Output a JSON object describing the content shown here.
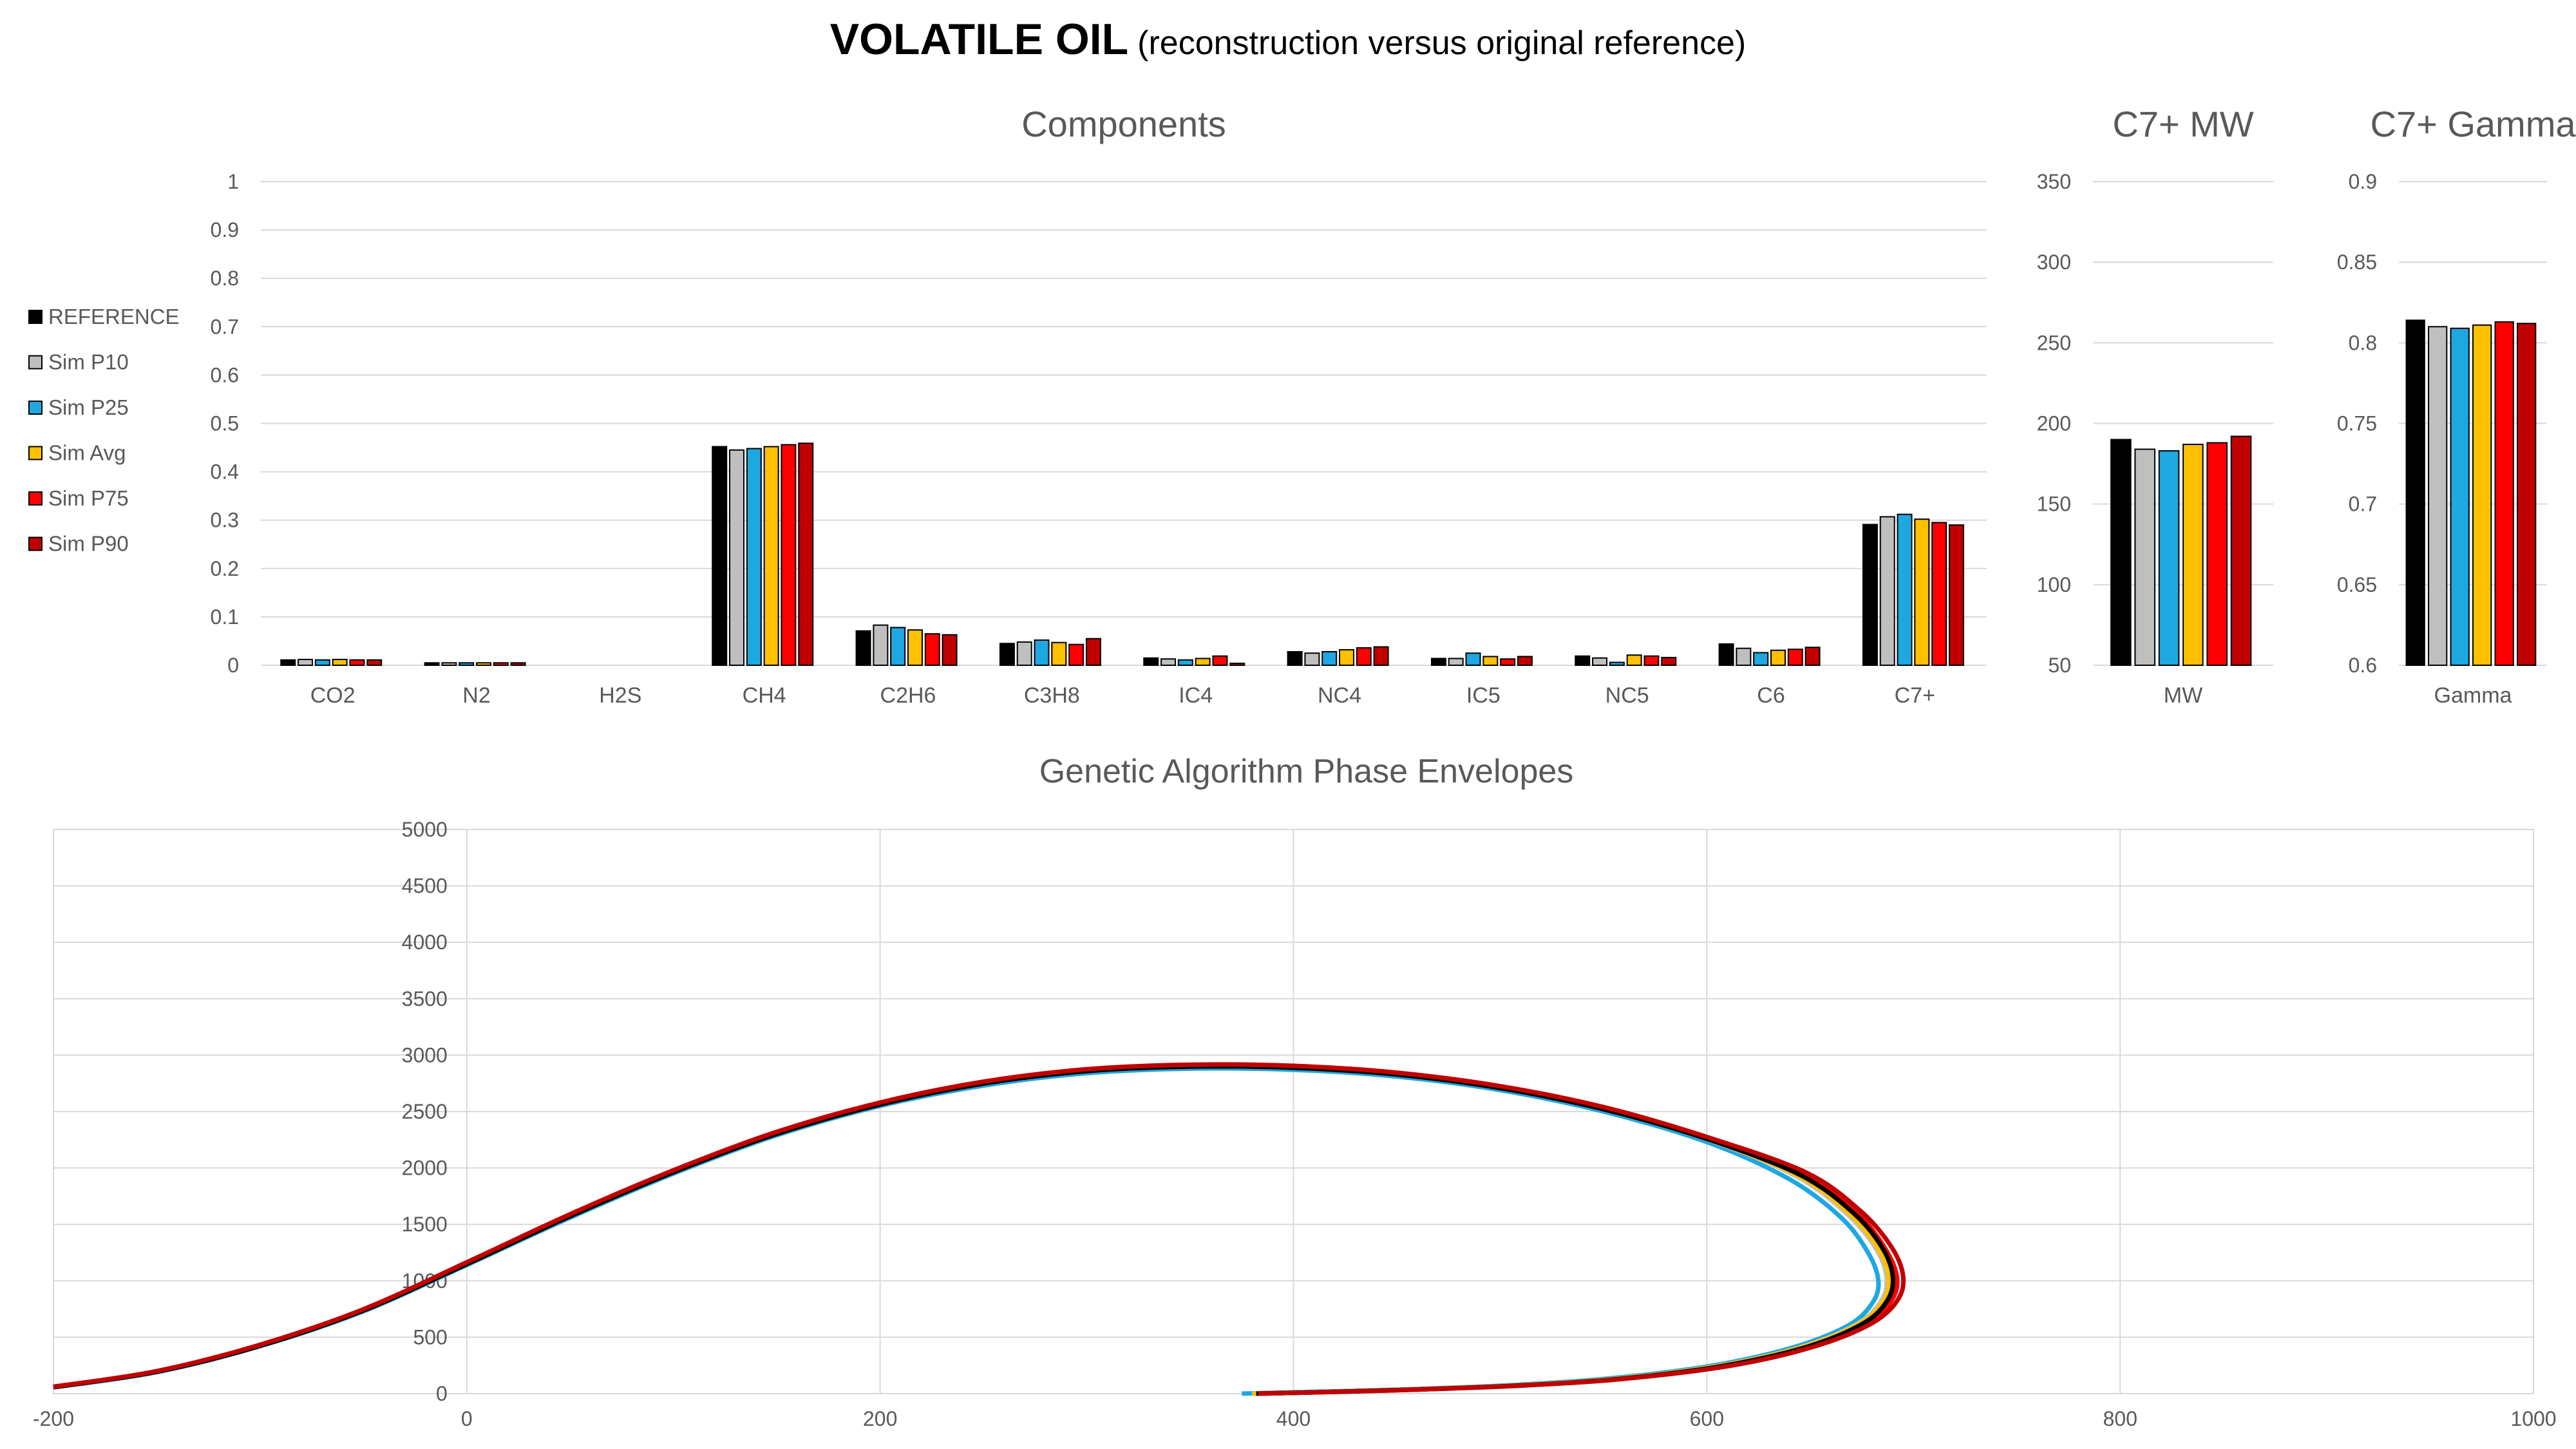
{
  "title": "VOLATILE OIL",
  "subtitle": "(reconstruction versus original reference)",
  "colors": {
    "REFERENCE": "#000000",
    "Sim P10": "#bfbfbf",
    "Sim P25": "#1ea7e1",
    "Sim Avg": "#ffc000",
    "Sim P75": "#ff0000",
    "Sim P90": "#c00000"
  },
  "chart_data": [
    {
      "type": "bar",
      "title": "Components",
      "categories": [
        "CO2",
        "N2",
        "H2S",
        "CH4",
        "C2H6",
        "C3H8",
        "IC4",
        "NC4",
        "IC5",
        "NC5",
        "C6",
        "C7+"
      ],
      "ylim": [
        0,
        1
      ],
      "yticks": [
        "0",
        "0.1",
        "0.2",
        "0.3",
        "0.4",
        "0.5",
        "0.6",
        "0.7",
        "0.8",
        "0.9",
        "1"
      ],
      "grid": true,
      "legend": "left",
      "series": [
        {
          "name": "REFERENCE",
          "values": [
            0.011,
            0.005,
            0,
            0.452,
            0.071,
            0.045,
            0.015,
            0.028,
            0.014,
            0.019,
            0.044,
            0.291
          ]
        },
        {
          "name": "Sim P10",
          "values": [
            0.012,
            0.005,
            0,
            0.445,
            0.083,
            0.048,
            0.013,
            0.025,
            0.014,
            0.015,
            0.035,
            0.307
          ]
        },
        {
          "name": "Sim P25",
          "values": [
            0.011,
            0.005,
            0,
            0.448,
            0.078,
            0.052,
            0.011,
            0.028,
            0.025,
            0.006,
            0.026,
            0.312
          ]
        },
        {
          "name": "Sim Avg",
          "values": [
            0.012,
            0.005,
            0,
            0.452,
            0.073,
            0.047,
            0.014,
            0.032,
            0.018,
            0.021,
            0.031,
            0.302
          ]
        },
        {
          "name": "Sim P75",
          "values": [
            0.011,
            0.005,
            0,
            0.456,
            0.065,
            0.043,
            0.019,
            0.036,
            0.013,
            0.019,
            0.033,
            0.295
          ]
        },
        {
          "name": "Sim P90",
          "values": [
            0.011,
            0.005,
            0,
            0.459,
            0.063,
            0.055,
            0.004,
            0.038,
            0.018,
            0.016,
            0.037,
            0.29
          ]
        }
      ]
    },
    {
      "type": "bar",
      "title": "C7+ MW",
      "categories": [
        "MW"
      ],
      "ylim": [
        50,
        350
      ],
      "yticks": [
        "50",
        "100",
        "150",
        "200",
        "250",
        "300",
        "350"
      ],
      "grid": true,
      "series": [
        {
          "name": "REFERENCE",
          "values": [
            190
          ]
        },
        {
          "name": "Sim P10",
          "values": [
            184
          ]
        },
        {
          "name": "Sim P25",
          "values": [
            183
          ]
        },
        {
          "name": "Sim Avg",
          "values": [
            187
          ]
        },
        {
          "name": "Sim P75",
          "values": [
            188
          ]
        },
        {
          "name": "Sim P90",
          "values": [
            192
          ]
        }
      ]
    },
    {
      "type": "bar",
      "title": "C7+ Gamma",
      "categories": [
        "Gamma"
      ],
      "ylim": [
        0.6,
        0.9
      ],
      "yticks": [
        "0.6",
        "0.65",
        "0.7",
        "0.75",
        "0.8",
        "0.85",
        "0.9"
      ],
      "grid": true,
      "series": [
        {
          "name": "REFERENCE",
          "values": [
            0.814
          ]
        },
        {
          "name": "Sim P10",
          "values": [
            0.81
          ]
        },
        {
          "name": "Sim P25",
          "values": [
            0.809
          ]
        },
        {
          "name": "Sim Avg",
          "values": [
            0.811
          ]
        },
        {
          "name": "Sim P75",
          "values": [
            0.813
          ]
        },
        {
          "name": "Sim P90",
          "values": [
            0.812
          ]
        }
      ]
    },
    {
      "type": "line",
      "title": "Genetic Algorithm Phase Envelopes",
      "xlim": [
        -200,
        1000
      ],
      "ylim": [
        0,
        5000
      ],
      "xticks": [
        "-200",
        "0",
        "200",
        "400",
        "600",
        "800",
        "1000"
      ],
      "yticks": [
        "0",
        "500",
        "1000",
        "1500",
        "2000",
        "2500",
        "3000",
        "3500",
        "4000",
        "4500",
        "5000"
      ],
      "grid": true,
      "series": [
        {
          "name": "Sim P25",
          "x": [
            -200,
            -150,
            -100,
            -50,
            0,
            50,
            100,
            150,
            200,
            250,
            300,
            350,
            400,
            450,
            500,
            550,
            600,
            640,
            665,
            678,
            683,
            680,
            668,
            640,
            600,
            550,
            500,
            450,
            400,
            375
          ],
          "y": [
            55,
            190,
            420,
            730,
            1140,
            1560,
            1950,
            2290,
            2550,
            2730,
            2840,
            2880,
            2870,
            2810,
            2690,
            2500,
            2230,
            1900,
            1560,
            1250,
            1000,
            800,
            600,
            400,
            240,
            130,
            70,
            35,
            12,
            0
          ]
        },
        {
          "name": "Sim P10",
          "x": [
            -200,
            -150,
            -100,
            -50,
            0,
            50,
            100,
            150,
            200,
            250,
            300,
            350,
            400,
            450,
            500,
            550,
            600,
            643,
            668,
            682,
            687,
            684,
            672,
            645,
            605,
            555,
            505,
            455,
            410,
            380
          ],
          "y": [
            58,
            195,
            425,
            738,
            1150,
            1575,
            1965,
            2305,
            2565,
            2750,
            2860,
            2900,
            2890,
            2830,
            2710,
            2520,
            2255,
            1930,
            1590,
            1280,
            1020,
            810,
            610,
            410,
            245,
            130,
            70,
            35,
            12,
            0
          ]
        },
        {
          "name": "Sim Avg",
          "x": [
            -200,
            -150,
            -100,
            -50,
            0,
            50,
            100,
            150,
            200,
            250,
            300,
            350,
            400,
            450,
            500,
            550,
            600,
            644,
            669,
            683,
            688,
            685,
            673,
            646,
            606,
            556,
            506,
            456,
            410,
            380
          ],
          "y": [
            58,
            196,
            426,
            740,
            1152,
            1578,
            1968,
            2308,
            2568,
            2753,
            2863,
            2903,
            2893,
            2833,
            2713,
            2523,
            2258,
            1933,
            1593,
            1283,
            1023,
            812,
            612,
            412,
            246,
            131,
            71,
            36,
            12,
            0
          ]
        },
        {
          "name": "Sim P75",
          "x": [
            -200,
            -150,
            -100,
            -50,
            0,
            50,
            100,
            150,
            200,
            250,
            300,
            350,
            400,
            450,
            500,
            550,
            600,
            646,
            672,
            686,
            692,
            689,
            676,
            648,
            608,
            558,
            508,
            458,
            412,
            382
          ],
          "y": [
            60,
            198,
            430,
            745,
            1160,
            1585,
            1975,
            2315,
            2575,
            2760,
            2870,
            2910,
            2900,
            2840,
            2720,
            2535,
            2270,
            1950,
            1610,
            1295,
            1030,
            815,
            612,
            410,
            245,
            130,
            70,
            35,
            12,
            0
          ]
        },
        {
          "name": "REFERENCE",
          "x": [
            -200,
            -150,
            -100,
            -50,
            0,
            50,
            100,
            150,
            200,
            250,
            300,
            350,
            400,
            450,
            500,
            550,
            600,
            645,
            671,
            685,
            690,
            687,
            675,
            648,
            608,
            558,
            508,
            458,
            412,
            382
          ],
          "y": [
            57,
            194,
            424,
            737,
            1148,
            1572,
            1962,
            2302,
            2562,
            2748,
            2858,
            2898,
            2888,
            2828,
            2708,
            2520,
            2258,
            1940,
            1600,
            1290,
            1030,
            815,
            615,
            412,
            246,
            131,
            71,
            36,
            12,
            0
          ]
        },
        {
          "name": "Sim P90",
          "x": [
            -200,
            -150,
            -100,
            -50,
            0,
            50,
            100,
            150,
            200,
            250,
            300,
            350,
            400,
            450,
            500,
            550,
            600,
            648,
            674,
            689,
            695,
            692,
            679,
            651,
            611,
            560,
            510,
            460,
            413,
            383
          ],
          "y": [
            61,
            200,
            433,
            748,
            1164,
            1590,
            1980,
            2320,
            2580,
            2765,
            2875,
            2915,
            2905,
            2845,
            2725,
            2540,
            2275,
            1960,
            1625,
            1310,
            1040,
            820,
            615,
            412,
            246,
            131,
            71,
            36,
            12,
            0
          ]
        }
      ]
    }
  ]
}
